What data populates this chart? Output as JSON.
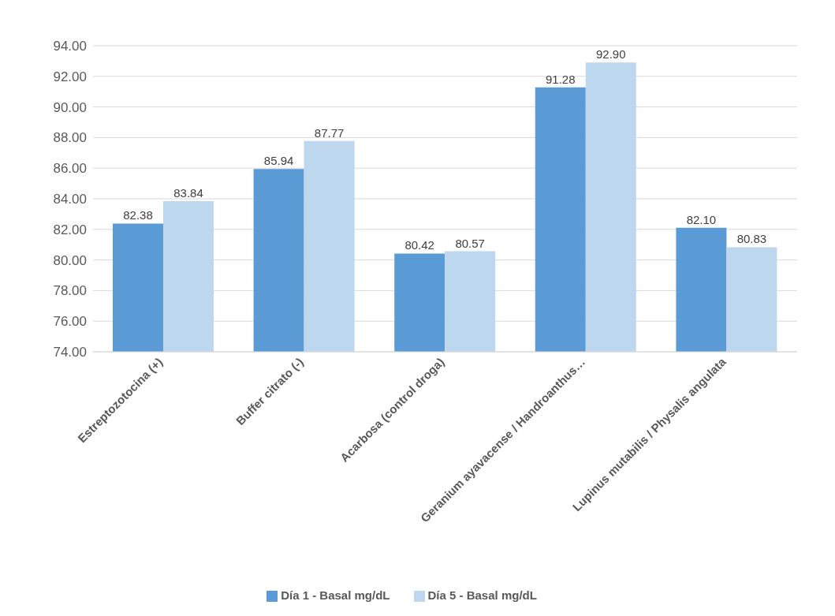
{
  "chart_data": {
    "type": "bar",
    "categories": [
      "Estreptozotocina (+)",
      "Buffer citrato (-)",
      "Acarbosa (control droga)",
      "Geranium ayavacense / Handroanthus…",
      "Lupinus mutabilis / Physalis angulata"
    ],
    "series": [
      {
        "name": "Día 1 - Basal mg/dL",
        "color": "#5b9bd5",
        "values": [
          82.38,
          85.94,
          80.42,
          91.28,
          82.1
        ],
        "value_labels": [
          "82.38",
          "85.94",
          "80.42",
          "91.28",
          "82.10"
        ]
      },
      {
        "name": "Día 5 - Basal mg/dL",
        "color": "#bdd7ee",
        "values": [
          83.84,
          87.77,
          80.57,
          92.9,
          80.83
        ],
        "value_labels": [
          "83.84",
          "87.77",
          "80.57",
          "92.90",
          "80.83"
        ]
      }
    ],
    "ylim": [
      74,
      94
    ],
    "yticks": [
      {
        "value": 74,
        "label": "74.00"
      },
      {
        "value": 76,
        "label": "76.00"
      },
      {
        "value": 78,
        "label": "78.00"
      },
      {
        "value": 80,
        "label": "80.00"
      },
      {
        "value": 82,
        "label": "82.00"
      },
      {
        "value": 84,
        "label": "84.00"
      },
      {
        "value": 86,
        "label": "86.00"
      },
      {
        "value": 88,
        "label": "88.00"
      },
      {
        "value": 90,
        "label": "90.00"
      },
      {
        "value": 92,
        "label": "92.00"
      },
      {
        "value": 94,
        "label": "94.00"
      }
    ],
    "grid": "y",
    "legend": "bottom"
  }
}
